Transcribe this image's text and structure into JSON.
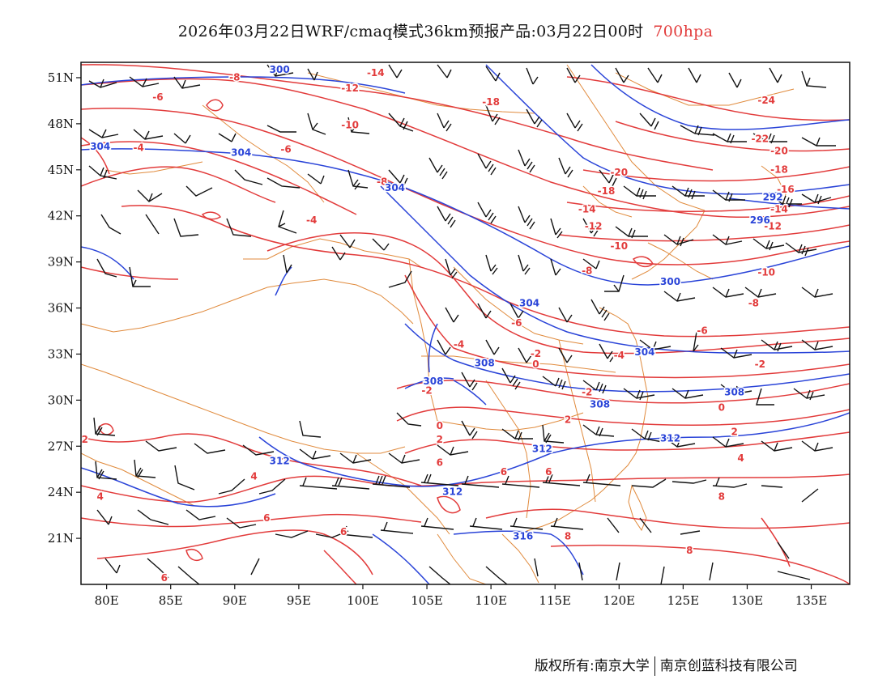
{
  "title": {
    "main": "2026年03月22日WRF/cmaq模式36km预报产品:03月22日00时",
    "level": "700hpa",
    "level_color": "#e23b3b"
  },
  "colors": {
    "temperature": "#e23b3b",
    "height": "#2a44d8",
    "wind": "#111111",
    "boundary": "#e08a3c"
  },
  "map": {
    "lon_range": [
      78,
      138
    ],
    "lat_range": [
      18,
      52
    ],
    "lon_ticks": [
      "80E",
      "85E",
      "90E",
      "95E",
      "100E",
      "105E",
      "110E",
      "115E",
      "120E",
      "125E",
      "130E",
      "135E"
    ],
    "lat_ticks": [
      "51N",
      "48N",
      "45N",
      "42N",
      "39N",
      "36N",
      "33N",
      "30N",
      "27N",
      "24N",
      "21N"
    ]
  },
  "temperature_labels": [
    {
      "text": "-14",
      "lon": 101.0,
      "lat": 51.3
    },
    {
      "text": "-8",
      "lon": 90.0,
      "lat": 51.0
    },
    {
      "text": "-6",
      "lon": 84.0,
      "lat": 49.7
    },
    {
      "text": "-12",
      "lon": 99.0,
      "lat": 50.3
    },
    {
      "text": "-18",
      "lon": 110.0,
      "lat": 49.4
    },
    {
      "text": "-10",
      "lon": 99.0,
      "lat": 47.9
    },
    {
      "text": "-4",
      "lon": 82.5,
      "lat": 46.4
    },
    {
      "text": "-6",
      "lon": 94.0,
      "lat": 46.3
    },
    {
      "text": "-8",
      "lon": 101.5,
      "lat": 44.2
    },
    {
      "text": "-20",
      "lon": 120.0,
      "lat": 44.8
    },
    {
      "text": "-18",
      "lon": 119.0,
      "lat": 43.6
    },
    {
      "text": "-24",
      "lon": 131.5,
      "lat": 49.5
    },
    {
      "text": "-22",
      "lon": 131.0,
      "lat": 47.0
    },
    {
      "text": "-20",
      "lon": 132.5,
      "lat": 46.2
    },
    {
      "text": "-18",
      "lon": 132.5,
      "lat": 45.0
    },
    {
      "text": "-16",
      "lon": 133.0,
      "lat": 43.7
    },
    {
      "text": "-14",
      "lon": 132.5,
      "lat": 42.4
    },
    {
      "text": "-12",
      "lon": 132.0,
      "lat": 41.3
    },
    {
      "text": "-12",
      "lon": 118.0,
      "lat": 41.3
    },
    {
      "text": "-14",
      "lon": 117.5,
      "lat": 42.4
    },
    {
      "text": "-10",
      "lon": 120.0,
      "lat": 40.0
    },
    {
      "text": "-8",
      "lon": 117.5,
      "lat": 38.4
    },
    {
      "text": "-10",
      "lon": 131.5,
      "lat": 38.3
    },
    {
      "text": "-8",
      "lon": 130.5,
      "lat": 36.3
    },
    {
      "text": "-6",
      "lon": 126.5,
      "lat": 34.5
    },
    {
      "text": "-4",
      "lon": 96.0,
      "lat": 41.7
    },
    {
      "text": "-6",
      "lon": 112.0,
      "lat": 35.0
    },
    {
      "text": "-4",
      "lon": 120.0,
      "lat": 32.9
    },
    {
      "text": "-4",
      "lon": 107.5,
      "lat": 33.6
    },
    {
      "text": "-2",
      "lon": 113.5,
      "lat": 33.0
    },
    {
      "text": "0",
      "lon": 113.5,
      "lat": 32.3
    },
    {
      "text": "-2",
      "lon": 131.0,
      "lat": 32.3
    },
    {
      "text": "-2",
      "lon": 105.0,
      "lat": 30.6
    },
    {
      "text": "-2",
      "lon": 117.5,
      "lat": 30.5
    },
    {
      "text": "0",
      "lon": 128.0,
      "lat": 29.5
    },
    {
      "text": "2",
      "lon": 116.0,
      "lat": 28.7
    },
    {
      "text": "0",
      "lon": 106.0,
      "lat": 28.3
    },
    {
      "text": "2",
      "lon": 106.0,
      "lat": 27.4
    },
    {
      "text": "2",
      "lon": 129.0,
      "lat": 27.9
    },
    {
      "text": "4",
      "lon": 129.5,
      "lat": 26.2
    },
    {
      "text": "6",
      "lon": 106.0,
      "lat": 25.9
    },
    {
      "text": "6",
      "lon": 111.0,
      "lat": 25.3
    },
    {
      "text": "6",
      "lon": 114.5,
      "lat": 25.3
    },
    {
      "text": "2",
      "lon": 78.3,
      "lat": 27.4
    },
    {
      "text": "4",
      "lon": 79.5,
      "lat": 23.7
    },
    {
      "text": "4",
      "lon": 91.5,
      "lat": 25.0
    },
    {
      "text": "6",
      "lon": 92.5,
      "lat": 22.3
    },
    {
      "text": "6",
      "lon": 98.5,
      "lat": 21.4
    },
    {
      "text": "8",
      "lon": 116.0,
      "lat": 21.1
    },
    {
      "text": "8",
      "lon": 128.0,
      "lat": 23.7
    },
    {
      "text": "8",
      "lon": 125.5,
      "lat": 20.2
    },
    {
      "text": "6",
      "lon": 84.5,
      "lat": 18.4
    }
  ],
  "height_labels": [
    {
      "text": "300",
      "lon": 93.5,
      "lat": 51.5
    },
    {
      "text": "304",
      "lon": 79.5,
      "lat": 46.5
    },
    {
      "text": "304",
      "lon": 90.5,
      "lat": 46.1
    },
    {
      "text": "304",
      "lon": 102.5,
      "lat": 43.8
    },
    {
      "text": "304",
      "lon": 113.0,
      "lat": 36.3
    },
    {
      "text": "300",
      "lon": 124.0,
      "lat": 37.7
    },
    {
      "text": "304",
      "lon": 122.0,
      "lat": 33.1
    },
    {
      "text": "292",
      "lon": 132.0,
      "lat": 43.2
    },
    {
      "text": "296",
      "lon": 131.0,
      "lat": 41.7
    },
    {
      "text": "308",
      "lon": 109.5,
      "lat": 32.4
    },
    {
      "text": "308",
      "lon": 105.5,
      "lat": 31.2
    },
    {
      "text": "308",
      "lon": 129.0,
      "lat": 30.5
    },
    {
      "text": "308",
      "lon": 118.5,
      "lat": 29.7
    },
    {
      "text": "312",
      "lon": 93.5,
      "lat": 26.0
    },
    {
      "text": "312",
      "lon": 114.0,
      "lat": 26.8
    },
    {
      "text": "312",
      "lon": 124.0,
      "lat": 27.5
    },
    {
      "text": "312",
      "lon": 107.0,
      "lat": 24.0
    },
    {
      "text": "316",
      "lon": 112.5,
      "lat": 21.1
    }
  ],
  "footer": {
    "copyright": "版权所有:南京大学",
    "company": "南京创蓝科技有限公司"
  }
}
